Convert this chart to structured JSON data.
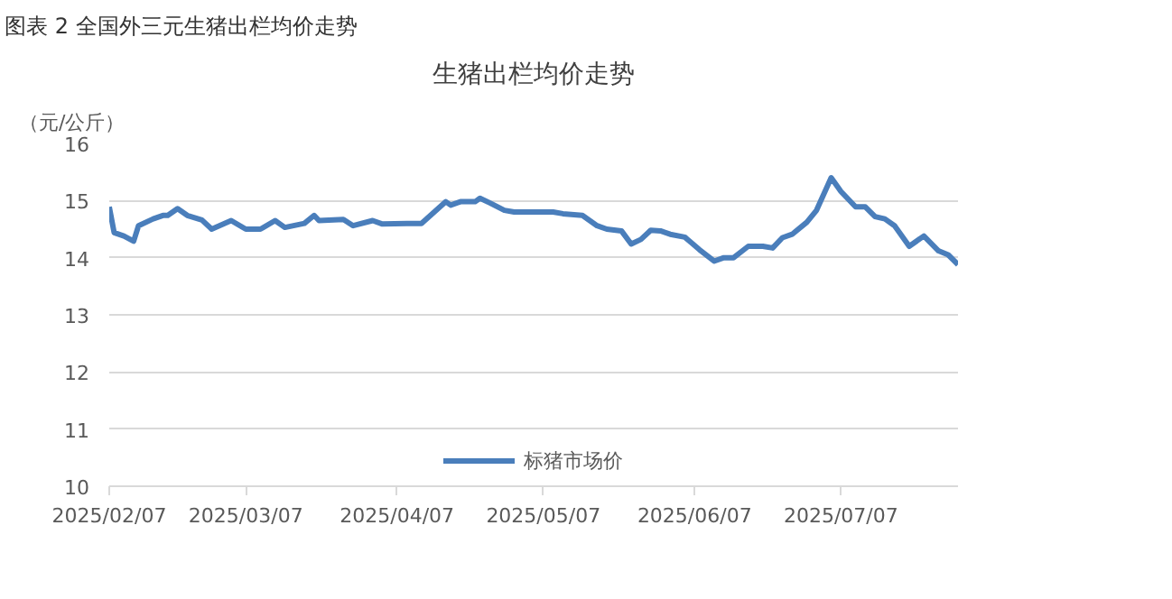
{
  "chart_data": {
    "type": "line",
    "title": "图表 2 全国外三元生猪出栏均价走势",
    "subtitle": "生猪出栏均价走势",
    "ylabel": "（元/公斤）",
    "x": [
      "2025-02-07",
      "2025-02-08",
      "2025-02-10",
      "2025-02-12",
      "2025-02-13",
      "2025-02-16",
      "2025-02-18",
      "2025-02-19",
      "2025-02-21",
      "2025-02-23",
      "2025-02-26",
      "2025-02-28",
      "2025-03-04",
      "2025-03-07",
      "2025-03-10",
      "2025-03-13",
      "2025-03-15",
      "2025-03-19",
      "2025-03-21",
      "2025-03-22",
      "2025-03-27",
      "2025-03-29",
      "2025-04-02",
      "2025-04-04",
      "2025-04-09",
      "2025-04-12",
      "2025-04-17",
      "2025-04-18",
      "2025-04-20",
      "2025-04-23",
      "2025-04-24",
      "2025-04-26",
      "2025-04-29",
      "2025-05-01",
      "2025-05-09",
      "2025-05-11",
      "2025-05-15",
      "2025-05-18",
      "2025-05-20",
      "2025-05-23",
      "2025-05-25",
      "2025-05-27",
      "2025-05-29",
      "2025-05-31",
      "2025-06-02",
      "2025-06-05",
      "2025-06-08",
      "2025-06-11",
      "2025-06-13",
      "2025-06-15",
      "2025-06-18",
      "2025-06-21",
      "2025-06-23",
      "2025-06-25",
      "2025-06-27",
      "2025-06-30",
      "2025-07-02",
      "2025-07-05",
      "2025-07-07",
      "2025-07-10",
      "2025-07-12",
      "2025-07-14",
      "2025-07-16",
      "2025-07-18",
      "2025-07-21",
      "2025-07-24",
      "2025-07-27",
      "2025-07-29",
      "2025-07-31"
    ],
    "series": [
      {
        "name": "标猪市场价",
        "color": "#4a7ebb",
        "values": [
          14.89,
          14.44,
          14.38,
          14.29,
          14.56,
          14.68,
          14.74,
          14.74,
          14.86,
          14.74,
          14.66,
          14.5,
          14.65,
          14.5,
          14.5,
          14.65,
          14.53,
          14.6,
          14.74,
          14.65,
          14.67,
          14.56,
          14.65,
          14.59,
          14.6,
          14.6,
          14.98,
          14.92,
          14.98,
          14.98,
          15.04,
          14.96,
          14.83,
          14.8,
          14.8,
          14.77,
          14.74,
          14.56,
          14.5,
          14.47,
          14.24,
          14.32,
          14.48,
          14.47,
          14.41,
          14.36,
          14.14,
          13.94,
          14.0,
          14.0,
          14.2,
          14.2,
          14.17,
          14.35,
          14.41,
          14.62,
          14.83,
          15.4,
          15.16,
          14.89,
          14.89,
          14.72,
          14.68,
          14.56,
          14.2,
          14.38,
          14.12,
          14.05,
          13.88
        ]
      }
    ],
    "xlim": [
      "2025-02-07",
      "2025-07-31"
    ],
    "xticks": [
      {
        "value": "2025-02-07",
        "label": "2025/02/07"
      },
      {
        "value": "2025-03-07",
        "label": "2025/03/07"
      },
      {
        "value": "2025-04-07",
        "label": "2025/04/07"
      },
      {
        "value": "2025-05-07",
        "label": "2025/05/07"
      },
      {
        "value": "2025-06-07",
        "label": "2025/06/07"
      },
      {
        "value": "2025-07-07",
        "label": "2025/07/07"
      }
    ],
    "ylim": [
      10,
      16
    ],
    "yticks": [
      10,
      11,
      12,
      13,
      14,
      15,
      16
    ],
    "grid": "y",
    "legend": "bottom",
    "marker": "none",
    "line_style": "solid"
  }
}
